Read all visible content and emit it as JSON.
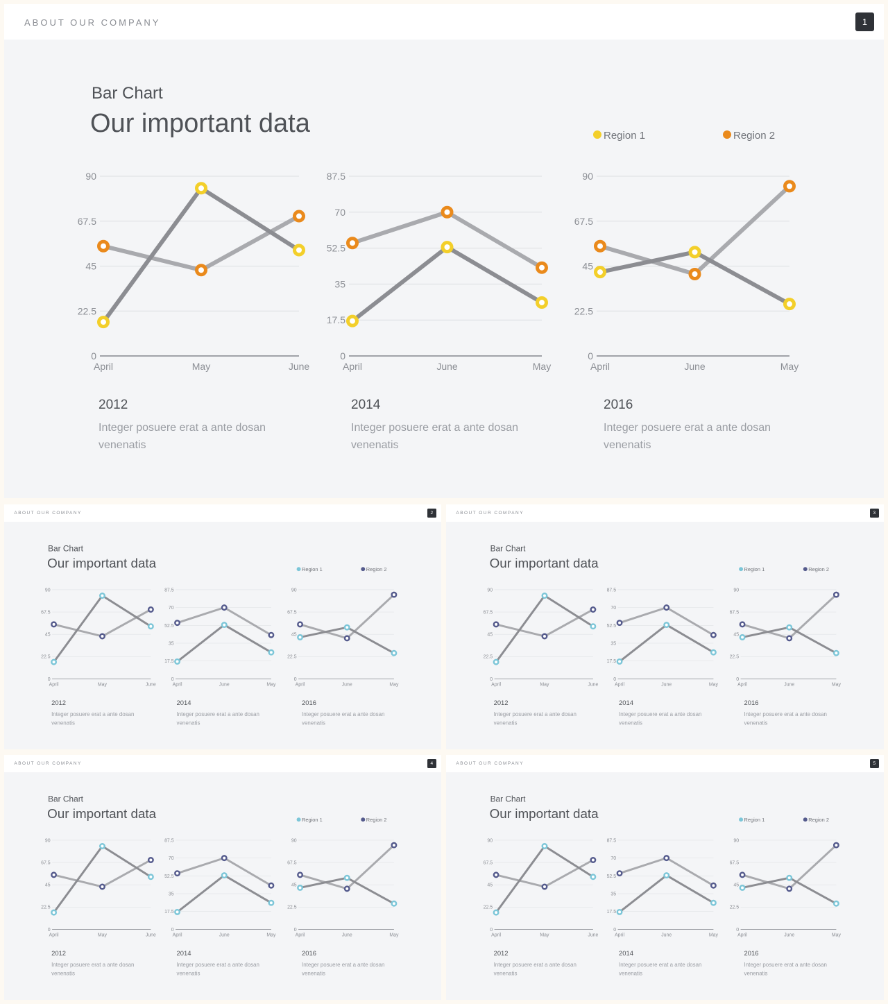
{
  "slides": [
    {
      "header": "ABOUT OUR COMPANY",
      "page": "1",
      "subtitle": "Bar Chart",
      "title": "Our important data",
      "legend": [
        "Region 1",
        "Region 2"
      ],
      "theme": {
        "region1": "#f3cf2a",
        "region2": "#ea8a1c"
      },
      "captions": [
        {
          "year": "2012",
          "text_line1": "Integer posuere erat a ante dosan",
          "text_line2": "venenatis"
        },
        {
          "year": "2014",
          "text_line1": "Integer posuere erat a ante dosan",
          "text_line2": "venenatis"
        },
        {
          "year": "2016",
          "text_line1": "Integer posuere erat a ante dosan",
          "text_line2": "venenatis"
        }
      ]
    },
    {
      "header": "ABOUT OUR COMPANY",
      "page": "2",
      "subtitle": "Bar Chart",
      "title": "Our important data",
      "legend": [
        "Region 1",
        "Region 2"
      ],
      "theme": {
        "region1": "#7cc6d8",
        "region2": "#545a8c"
      },
      "captions": [
        {
          "year": "2012",
          "text_line1": "Integer posuere erat a ante dosan",
          "text_line2": "venenatis"
        },
        {
          "year": "2014",
          "text_line1": "Integer posuere erat a ante dosan",
          "text_line2": "venenatis"
        },
        {
          "year": "2016",
          "text_line1": "Integer posuere erat a ante dosan",
          "text_line2": "venenatis"
        }
      ]
    },
    {
      "header": "ABOUT OUR COMPANY",
      "page": "3",
      "subtitle": "Bar Chart",
      "title": "Our important data",
      "legend": [
        "Region 1",
        "Region 2"
      ],
      "theme": {
        "region1": "#7cc6d8",
        "region2": "#545a8c"
      },
      "captions": [
        {
          "year": "2012",
          "text_line1": "Integer posuere erat a ante dosan",
          "text_line2": "venenatis"
        },
        {
          "year": "2014",
          "text_line1": "Integer posuere erat a ante dosan",
          "text_line2": "venenatis"
        },
        {
          "year": "2016",
          "text_line1": "Integer posuere erat a ante dosan",
          "text_line2": "venenatis"
        }
      ]
    },
    {
      "header": "ABOUT OUR COMPANY",
      "page": "4",
      "subtitle": "Bar Chart",
      "title": "Our important data",
      "legend": [
        "Region 1",
        "Region 2"
      ],
      "theme": {
        "region1": "#7cc6d8",
        "region2": "#545a8c"
      },
      "captions": [
        {
          "year": "2012",
          "text_line1": "Integer posuere erat a ante dosan",
          "text_line2": "venenatis"
        },
        {
          "year": "2014",
          "text_line1": "Integer posuere erat a ante dosan",
          "text_line2": "venenatis"
        },
        {
          "year": "2016",
          "text_line1": "Integer posuere erat a ante dosan",
          "text_line2": "venenatis"
        }
      ]
    },
    {
      "header": "ABOUT OUR COMPANY",
      "page": "5",
      "subtitle": "Bar Chart",
      "title": "Our important data",
      "legend": [
        "Region 1",
        "Region 2"
      ],
      "theme": {
        "region1": "#7cc6d8",
        "region2": "#545a8c"
      },
      "captions": [
        {
          "year": "2012",
          "text_line1": "Integer posuere erat a ante dosan",
          "text_line2": "venenatis"
        },
        {
          "year": "2014",
          "text_line1": "Integer posuere erat a ante dosan",
          "text_line2": "venenatis"
        },
        {
          "year": "2016",
          "text_line1": "Integer posuere erat a ante dosan",
          "text_line2": "venenatis"
        }
      ]
    }
  ],
  "chart_data": [
    {
      "type": "line",
      "categories": [
        "April",
        "May",
        "June"
      ],
      "ticks": [
        "0",
        "22.5",
        "45",
        "67.5",
        "90"
      ],
      "ylim": [
        0,
        90
      ],
      "series": [
        {
          "name": "Region 1",
          "values": [
            17,
            84,
            53
          ]
        },
        {
          "name": "Region 2",
          "values": [
            55,
            43,
            70
          ]
        }
      ]
    },
    {
      "type": "line",
      "categories": [
        "April",
        "June",
        "May"
      ],
      "ticks": [
        "17.5",
        "35",
        "52.5",
        "70",
        "87.5"
      ],
      "ylim": [
        0,
        87.5
      ],
      "series": [
        {
          "name": "Region 1",
          "values": [
            17,
            53,
            26
          ]
        },
        {
          "name": "Region 2",
          "values": [
            55,
            70,
            43
          ]
        }
      ]
    },
    {
      "type": "line",
      "categories": [
        "April",
        "June",
        "May"
      ],
      "ticks": [
        "0",
        "22.5",
        "45",
        "67.5",
        "90"
      ],
      "ylim": [
        0,
        90
      ],
      "series": [
        {
          "name": "Region 1",
          "values": [
            42,
            52,
            26
          ]
        },
        {
          "name": "Region 2",
          "values": [
            55,
            41,
            85
          ]
        }
      ]
    }
  ]
}
